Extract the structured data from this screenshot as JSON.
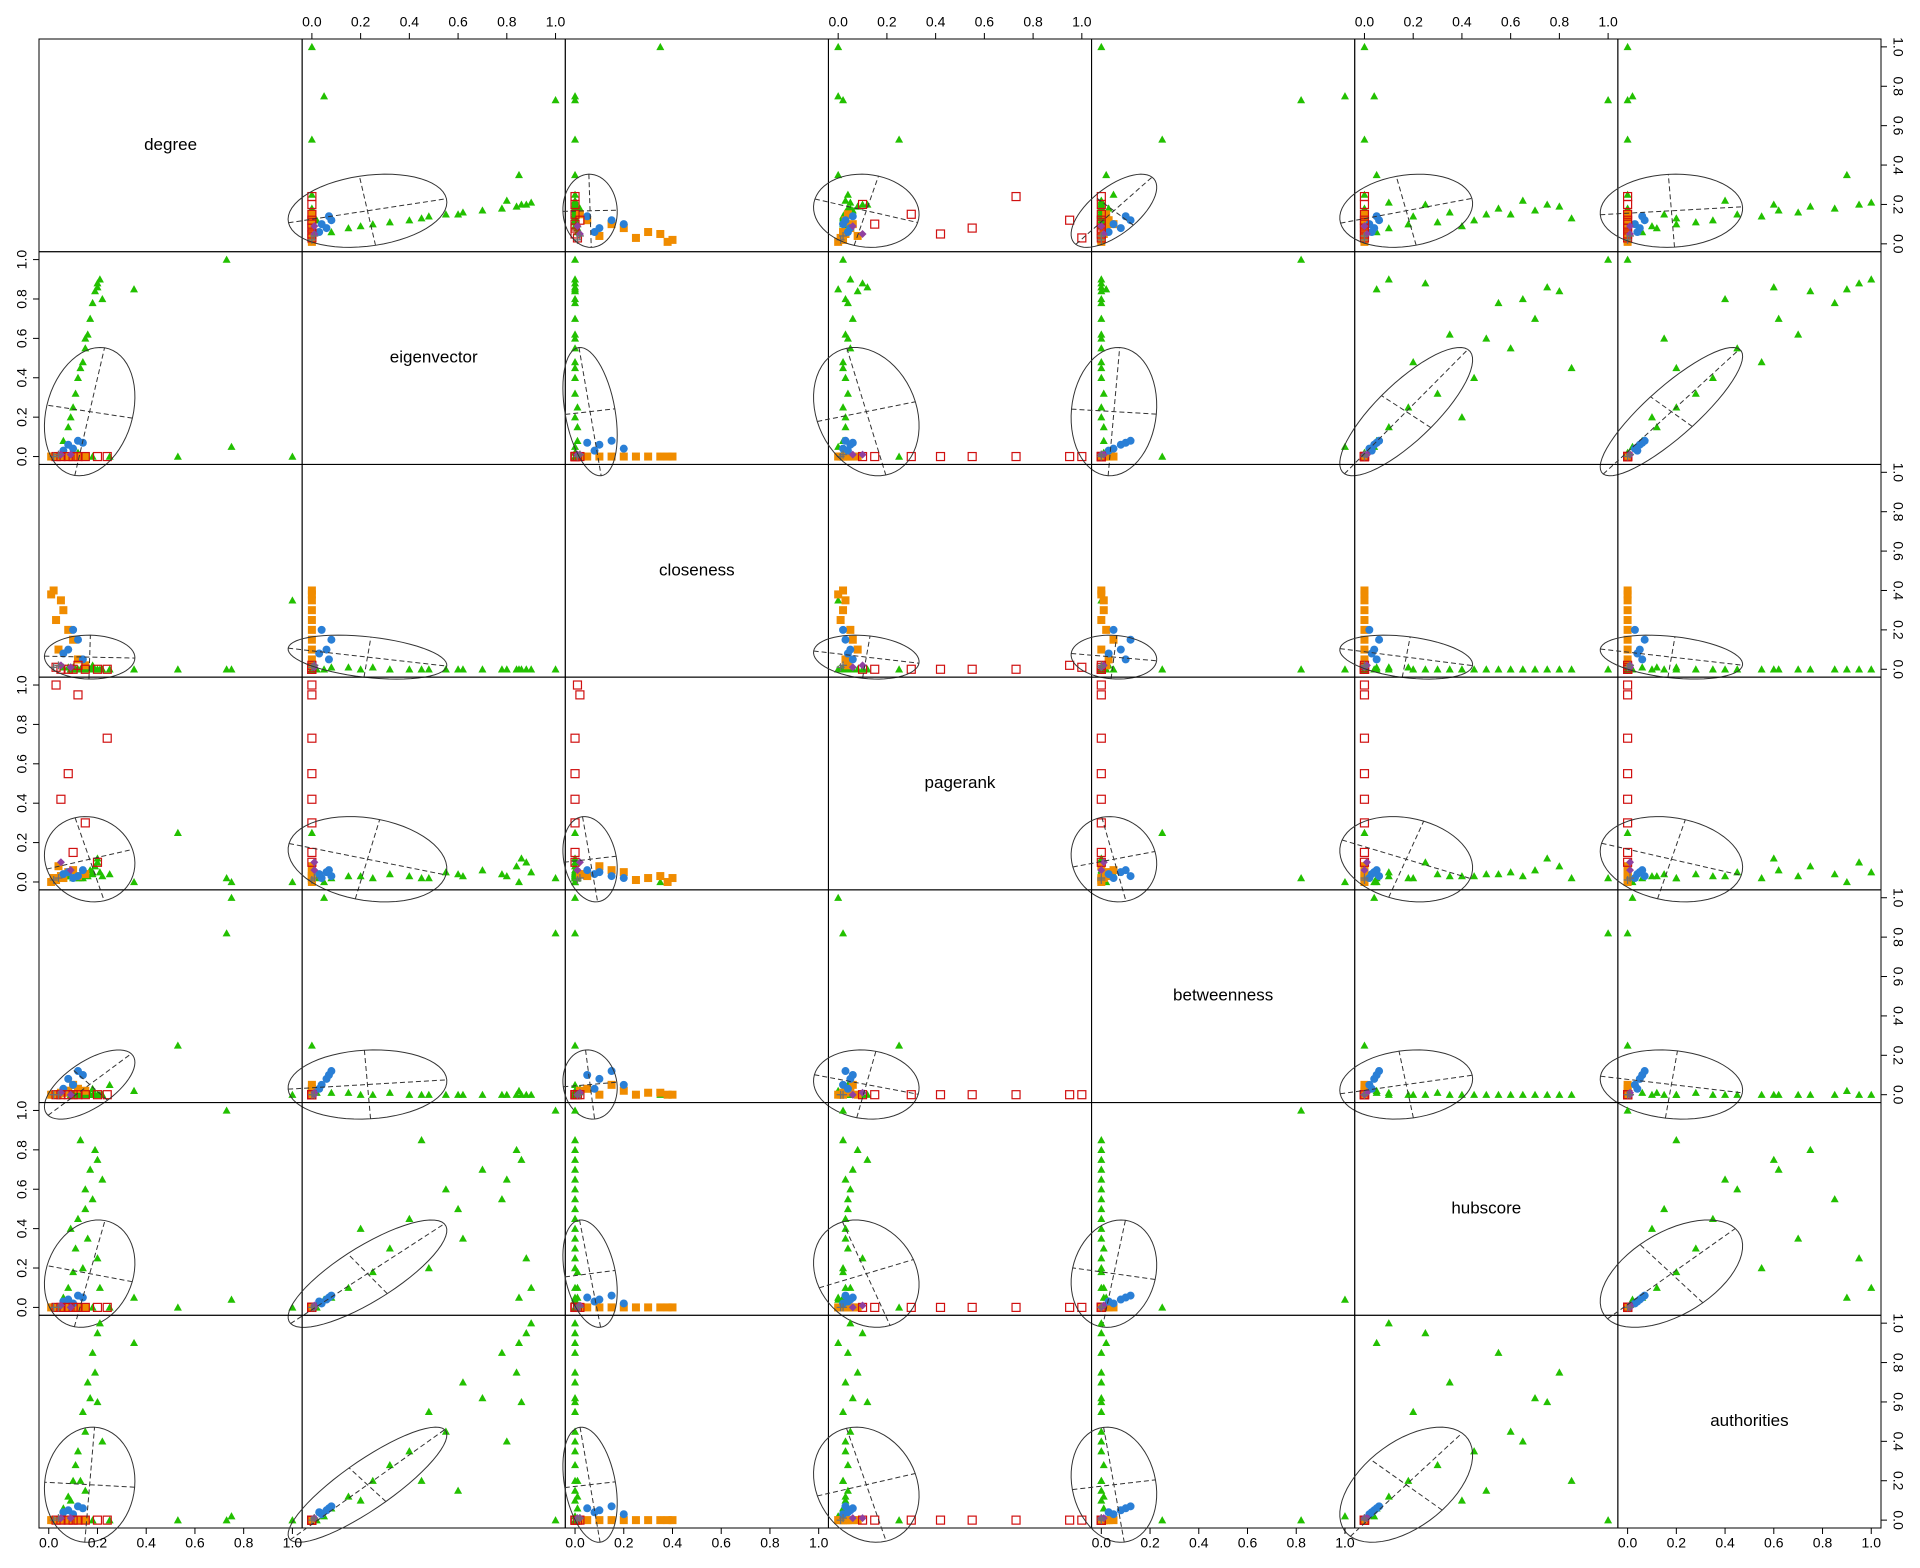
{
  "chart_data": {
    "type": "scatter-matrix",
    "variables": [
      "degree",
      "eigenvector",
      "closeness",
      "pagerank",
      "betweenness",
      "hubscore",
      "authorities"
    ],
    "xlim": [
      -0.04,
      1.04
    ],
    "ylim": [
      -0.04,
      1.04
    ],
    "xticks": [
      {
        "value": 0,
        "label": "0.0"
      },
      0.2,
      0.4,
      0.6,
      0.8,
      {
        "value": 1,
        "label": "1.0"
      }
    ],
    "yticks": [
      {
        "value": 0,
        "label": "0.0"
      },
      0.2,
      0.4,
      0.6,
      0.8,
      {
        "value": 1,
        "label": "1.0"
      }
    ],
    "ellipse": true,
    "series": [
      {
        "color": "#22c000",
        "marker": "triangle",
        "points": [
          [
            0.06,
            0.08,
            0.01,
            0.02,
            0.01,
            0.05,
            0.06
          ],
          [
            0.08,
            0.15,
            0.01,
            0.03,
            0.01,
            0.1,
            0.12
          ],
          [
            0.1,
            0.25,
            0.01,
            0.02,
            0.0,
            0.18,
            0.2
          ],
          [
            0.11,
            0.32,
            0.0,
            0.04,
            0.01,
            0.3,
            0.28
          ],
          [
            0.12,
            0.4,
            0.0,
            0.03,
            0.0,
            0.45,
            0.35
          ],
          [
            0.14,
            0.48,
            0.0,
            0.02,
            0.0,
            0.2,
            0.55
          ],
          [
            0.15,
            0.55,
            0.0,
            0.05,
            0.0,
            0.6,
            0.45
          ],
          [
            0.16,
            0.62,
            0.0,
            0.03,
            0.0,
            0.35,
            0.7
          ],
          [
            0.17,
            0.7,
            0.0,
            0.06,
            0.0,
            0.7,
            0.62
          ],
          [
            0.18,
            0.78,
            0.0,
            0.04,
            0.0,
            0.55,
            0.85
          ],
          [
            0.19,
            0.84,
            0.0,
            0.08,
            0.0,
            0.8,
            0.75
          ],
          [
            0.2,
            0.88,
            0.0,
            0.1,
            0.0,
            0.25,
            0.95
          ],
          [
            0.21,
            0.9,
            0.0,
            0.05,
            0.0,
            0.1,
            1.0
          ],
          [
            0.2,
            0.86,
            0.0,
            0.12,
            0.0,
            0.75,
            0.6
          ],
          [
            0.22,
            0.8,
            0.0,
            0.03,
            0.0,
            0.65,
            0.4
          ],
          [
            0.13,
            0.45,
            0.0,
            0.02,
            0.0,
            0.85,
            0.2
          ],
          [
            0.15,
            0.6,
            0.0,
            0.04,
            0.0,
            0.5,
            0.15
          ],
          [
            0.09,
            0.2,
            0.0,
            0.03,
            0.0,
            0.4,
            0.1
          ],
          [
            0.12,
            0.02,
            0.0,
            0.02,
            0.01,
            0.0,
            0.0
          ],
          [
            0.18,
            0.0,
            0.02,
            0.05,
            0.03,
            0.0,
            0.0
          ],
          [
            0.25,
            0.0,
            0.0,
            0.04,
            0.05,
            0.0,
            0.0
          ],
          [
            0.73,
            1.0,
            0.0,
            0.02,
            0.82,
            1.0,
            0.0
          ],
          [
            1.0,
            0.0,
            0.35,
            0.0,
            0.0,
            0.0,
            0.0
          ],
          [
            0.75,
            0.05,
            0.0,
            0.0,
            1.0,
            0.04,
            0.02
          ],
          [
            0.53,
            0.0,
            0.0,
            0.25,
            0.25,
            0.0,
            0.0
          ],
          [
            0.35,
            0.85,
            0.0,
            0.0,
            0.02,
            0.05,
            0.9
          ]
        ]
      },
      {
        "color": "#f08c00",
        "marker": "square",
        "points": [
          [
            0.02,
            0.0,
            0.4,
            0.02,
            0.0,
            0.0,
            0.0
          ],
          [
            0.05,
            0.0,
            0.35,
            0.03,
            0.01,
            0.0,
            0.0
          ],
          [
            0.03,
            0.0,
            0.25,
            0.01,
            0.0,
            0.0,
            0.0
          ],
          [
            0.08,
            0.0,
            0.2,
            0.05,
            0.02,
            0.0,
            0.0
          ],
          [
            0.1,
            0.0,
            0.15,
            0.06,
            0.05,
            0.0,
            0.0
          ],
          [
            0.04,
            0.0,
            0.1,
            0.08,
            0.0,
            0.0,
            0.0
          ],
          [
            0.12,
            0.0,
            0.05,
            0.03,
            0.03,
            0.0,
            0.0
          ],
          [
            0.06,
            0.0,
            0.3,
            0.02,
            0.01,
            0.0,
            0.0
          ],
          [
            0.15,
            0.0,
            0.02,
            0.04,
            0.02,
            0.0,
            0.0
          ],
          [
            0.01,
            0.0,
            0.38,
            0.0,
            0.0,
            0.0,
            0.0
          ]
        ]
      },
      {
        "color": "#2a7fd6",
        "marker": "circle",
        "points": [
          [
            0.08,
            0.06,
            0.1,
            0.05,
            0.08,
            0.04,
            0.05
          ],
          [
            0.12,
            0.08,
            0.15,
            0.03,
            0.12,
            0.06,
            0.07
          ],
          [
            0.1,
            0.04,
            0.2,
            0.02,
            0.05,
            0.02,
            0.03
          ],
          [
            0.14,
            0.07,
            0.05,
            0.06,
            0.1,
            0.05,
            0.06
          ],
          [
            0.06,
            0.03,
            0.08,
            0.04,
            0.03,
            0.03,
            0.04
          ]
        ]
      },
      {
        "color": "#d01010",
        "marker": "open-square",
        "points": [
          [
            0.03,
            0.0,
            0.01,
            1.0,
            0.0,
            0.0,
            0.0
          ],
          [
            0.12,
            0.0,
            0.02,
            0.95,
            0.0,
            0.0,
            0.0
          ],
          [
            0.08,
            0.0,
            0.0,
            0.55,
            0.0,
            0.0,
            0.0
          ],
          [
            0.24,
            0.0,
            0.0,
            0.73,
            0.0,
            0.0,
            0.0
          ],
          [
            0.05,
            0.0,
            0.0,
            0.42,
            0.0,
            0.0,
            0.0
          ],
          [
            0.15,
            0.0,
            0.0,
            0.3,
            0.0,
            0.0,
            0.0
          ],
          [
            0.1,
            0.0,
            0.0,
            0.15,
            0.0,
            0.0,
            0.0
          ],
          [
            0.2,
            0.0,
            0.0,
            0.1,
            0.0,
            0.0,
            0.0
          ]
        ]
      },
      {
        "color": "#9040a0",
        "marker": "diamond",
        "points": [
          [
            0.05,
            0.01,
            0.02,
            0.1,
            0.01,
            0.01,
            0.01
          ],
          [
            0.09,
            0.01,
            0.01,
            0.06,
            0.0,
            0.0,
            0.01
          ]
        ]
      },
      {
        "color": "#707070",
        "marker": "plus",
        "points": [
          [
            0.02,
            0.0,
            0.01,
            0.01,
            0.0,
            0.0,
            0.0
          ],
          [
            0.04,
            0.01,
            0.02,
            0.02,
            0.0,
            0.0,
            0.01
          ]
        ]
      }
    ]
  }
}
